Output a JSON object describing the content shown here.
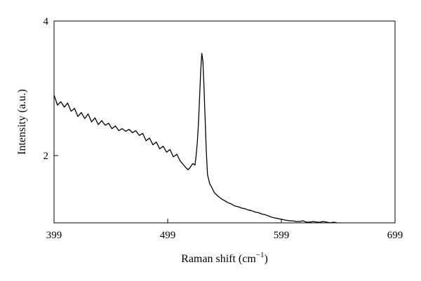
{
  "chart_data": {
    "type": "line",
    "title": "",
    "xlabel": "Raman shift (",
    "xlabel_unit": "cm",
    "xlabel_exp": "−1",
    "xlabel_close": ")",
    "ylabel": "Intensity (a.u.)",
    "xlim": [
      399,
      699
    ],
    "ylim": [
      1,
      4
    ],
    "x_ticks": [
      399,
      499,
      599,
      699
    ],
    "x_tick_labels": [
      "399",
      "499",
      "599",
      "699"
    ],
    "y_ticks": [
      2,
      4
    ],
    "y_tick_labels": [
      "2",
      "4"
    ],
    "grid": false,
    "legend": "none",
    "line_color": "#000000",
    "series": [
      {
        "x": [
          399,
          402,
          405,
          408,
          411,
          414,
          417,
          420,
          423,
          426,
          429,
          432,
          435,
          438,
          441,
          444,
          447,
          450,
          453,
          456,
          459,
          462,
          465,
          468,
          471,
          474,
          477,
          480,
          483,
          486,
          489,
          492,
          495,
          498,
          501,
          504,
          507,
          510,
          513,
          515,
          517,
          519,
          521,
          523,
          524,
          525,
          526,
          527,
          528,
          529,
          530,
          531,
          532,
          533,
          534,
          536,
          538,
          540,
          543,
          546,
          549,
          552,
          555,
          558,
          561,
          564,
          567,
          570,
          573,
          576,
          579,
          582,
          585,
          588,
          591,
          594,
          597,
          600,
          603,
          606,
          609,
          612,
          615,
          618,
          621,
          624,
          627,
          630,
          633,
          636,
          639,
          642,
          645,
          648
        ],
        "values": [
          2.9,
          2.75,
          2.8,
          2.72,
          2.78,
          2.66,
          2.7,
          2.58,
          2.64,
          2.55,
          2.62,
          2.5,
          2.56,
          2.46,
          2.52,
          2.45,
          2.48,
          2.4,
          2.44,
          2.37,
          2.4,
          2.36,
          2.39,
          2.34,
          2.37,
          2.3,
          2.33,
          2.22,
          2.26,
          2.16,
          2.2,
          2.1,
          2.14,
          2.05,
          2.09,
          1.98,
          2.02,
          1.92,
          1.86,
          1.82,
          1.79,
          1.83,
          1.88,
          1.86,
          2.0,
          2.18,
          2.45,
          2.85,
          3.25,
          3.52,
          3.4,
          3.0,
          2.5,
          2.05,
          1.72,
          1.58,
          1.52,
          1.45,
          1.4,
          1.36,
          1.33,
          1.3,
          1.28,
          1.25,
          1.24,
          1.22,
          1.21,
          1.19,
          1.18,
          1.16,
          1.15,
          1.13,
          1.12,
          1.1,
          1.08,
          1.07,
          1.06,
          1.05,
          1.04,
          1.03,
          1.03,
          1.02,
          1.02,
          1.03,
          1.01,
          1.01,
          1.02,
          1.01,
          1.01,
          1.02,
          1.01,
          1.0,
          1.01,
          1.0
        ]
      }
    ]
  }
}
